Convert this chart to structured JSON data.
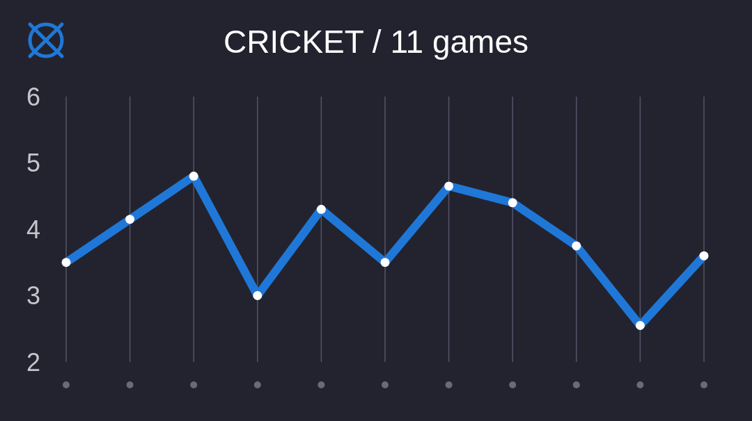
{
  "chart_data": {
    "type": "line",
    "title": "CRICKET / 11 games",
    "categories": [
      null,
      null,
      null,
      null,
      null,
      null,
      null,
      null,
      null,
      null,
      null
    ],
    "values": [
      3.5,
      4.15,
      4.8,
      3.0,
      4.3,
      3.5,
      4.65,
      4.4,
      3.75,
      2.55,
      3.6
    ],
    "color": "#1f78d8",
    "ylim": [
      2,
      6
    ],
    "yticks": [
      2,
      3,
      4,
      5,
      6
    ],
    "grid": "x",
    "marker": "circle",
    "line_style": "solid",
    "tick_labels": "y"
  }
}
